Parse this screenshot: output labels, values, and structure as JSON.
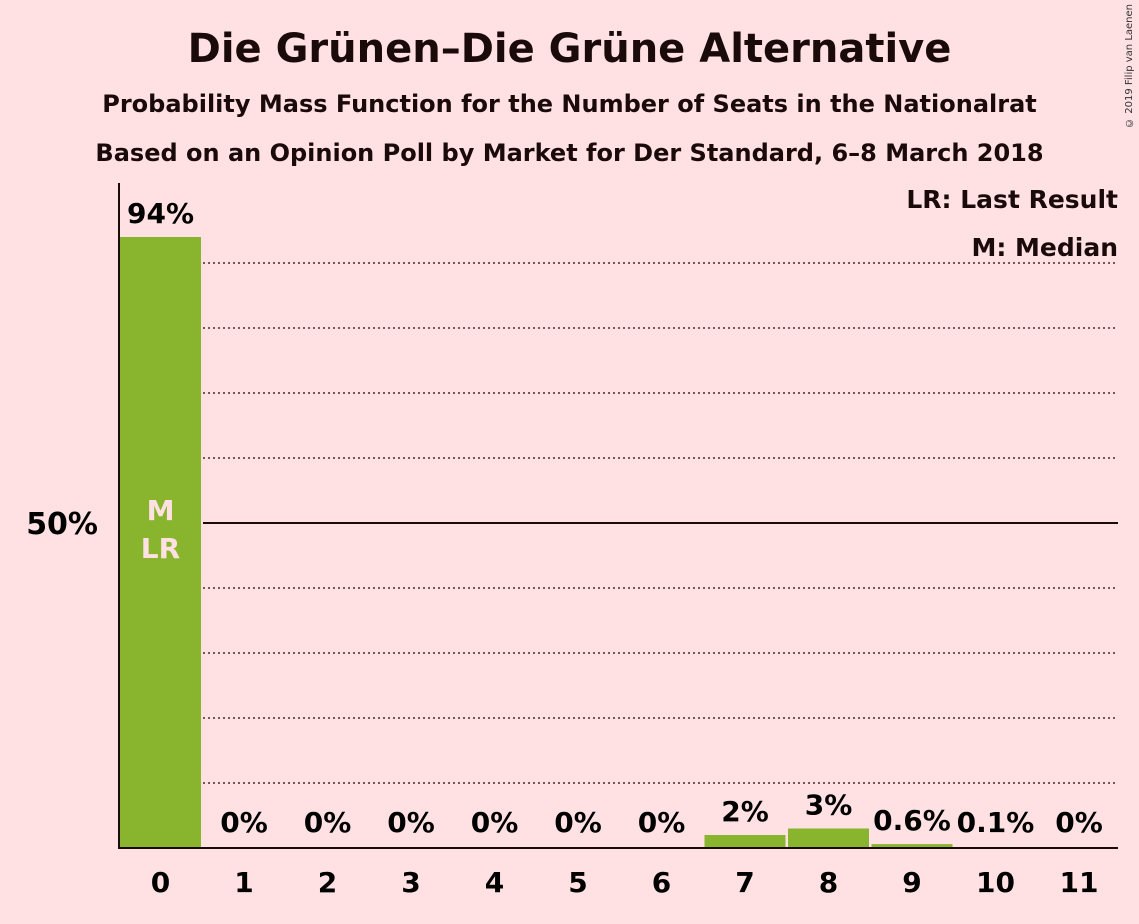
{
  "title": "Die Grünen–Die Grüne Alternative",
  "subtitle1": "Probability Mass Function for the Number of Seats in the Nationalrat",
  "subtitle2": "Based on an Opinion Poll by Market for Der Standard, 6–8 March 2018",
  "copyright": "© 2019 Filip van Laenen",
  "legend": {
    "lr": "LR: Last Result",
    "m": "M: Median"
  },
  "colors": {
    "background": "#FFE1E4",
    "bar": "#88B52D"
  },
  "chart_data": {
    "type": "bar",
    "categories": [
      "0",
      "1",
      "2",
      "3",
      "4",
      "5",
      "6",
      "7",
      "8",
      "9",
      "10",
      "11"
    ],
    "values": [
      94,
      0,
      0,
      0,
      0,
      0,
      0,
      2,
      3,
      0.6,
      0.1,
      0
    ],
    "value_labels": [
      "94%",
      "0%",
      "0%",
      "0%",
      "0%",
      "0%",
      "0%",
      "2%",
      "3%",
      "0.6%",
      "0.1%",
      "0%"
    ],
    "ylim": [
      0,
      100
    ],
    "y_tick_label": "50%",
    "y_tick_value": 50,
    "grid": "dotted every 10%",
    "bar_marks": {
      "0": [
        "M",
        "LR"
      ]
    }
  }
}
